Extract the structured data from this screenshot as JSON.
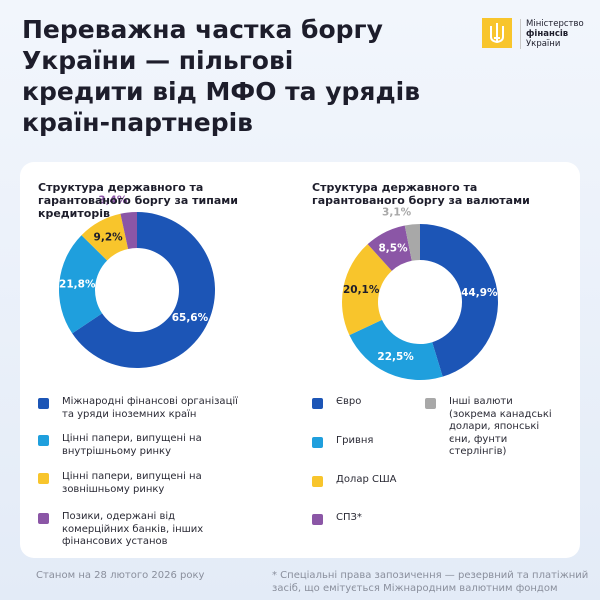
{
  "header": {
    "title": "Переважна частка боргу України — пільгові кредити від МФО та урядів країн-партнерів",
    "logo": [
      "Міністерство",
      "фінансів",
      "України"
    ]
  },
  "chart_data": [
    {
      "type": "pie",
      "title": "Структура державного та гарантованого боргу за типами кредиторів",
      "categories": [
        "Міжнародні фінансові організації та уряди іноземних країн",
        "Цінні папери, випущені на внутрішньому ринку",
        "Цінні папери, випущені на зовнішньому ринку",
        "Позики, одержані від комерційних банків, інших фінансових установ"
      ],
      "values": [
        65.6,
        21.8,
        9.2,
        3.4
      ],
      "value_labels": [
        "65,6%",
        "21,8%",
        "9,2%",
        "3,4%"
      ],
      "colors": [
        "#1c55b6",
        "#1f9fdd",
        "#f8c52c",
        "#8b56a6"
      ]
    },
    {
      "type": "pie",
      "title": "Структура державного та гарантованого боргу за валютами",
      "categories": [
        "Євро",
        "Гривня",
        "Долар США",
        "СПЗ*",
        "Інші валюти (зокрема канадські долари, японські єни, фунти стерлінгів)"
      ],
      "values": [
        44.9,
        22.5,
        20.1,
        8.5,
        3.1
      ],
      "value_labels": [
        "44,9%",
        "22,5%",
        "20,1%",
        "8,5%",
        "3,1%"
      ],
      "colors": [
        "#1c55b6",
        "#1f9fdd",
        "#f8c52c",
        "#8b56a6",
        "#a8a8a8"
      ]
    }
  ],
  "footer": {
    "date": "Станом на 28 лютого 2026 року",
    "note": "* Спеціальні права запозичення — резервний та платіжний засіб, що емітується Міжнародним валютним фондом"
  }
}
